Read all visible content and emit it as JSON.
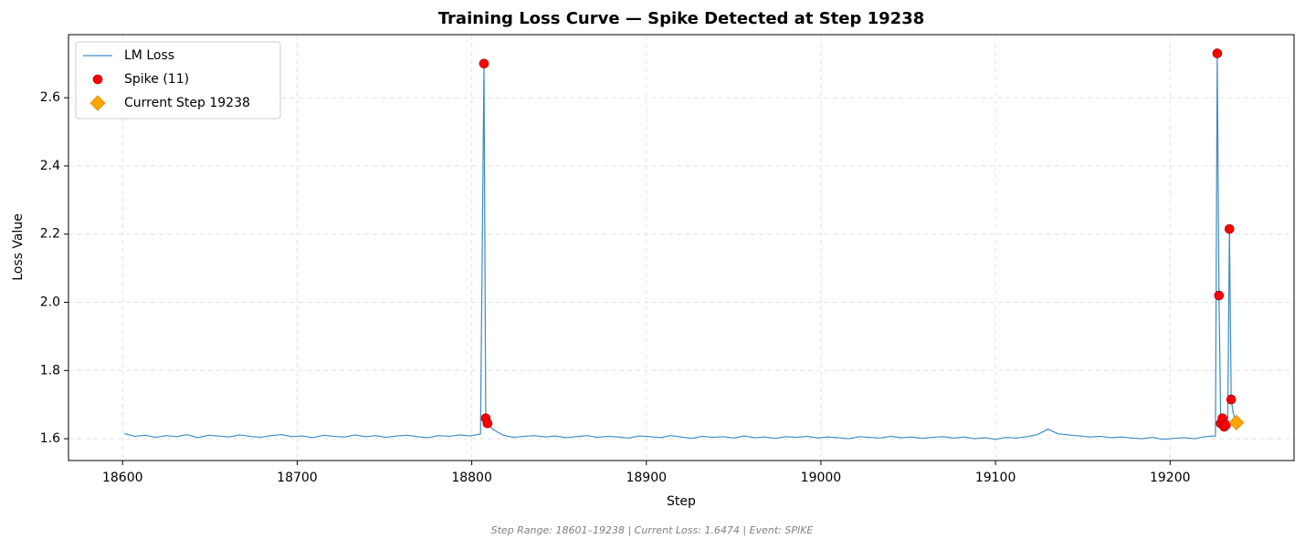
{
  "chart_data": {
    "type": "line",
    "title": "Training Loss Curve — Spike Detected at Step 19238",
    "xlabel": "Step",
    "ylabel": "Loss Value",
    "footnote": "Step Range: 18601–19238 | Current Loss: 1.6474 | Event: SPIKE",
    "xlim": [
      18569,
      19271
    ],
    "ylim": [
      1.536,
      2.785
    ],
    "xticks": [
      18600,
      18700,
      18800,
      18900,
      19000,
      19100,
      19200
    ],
    "yticks": [
      1.6,
      1.8,
      {
        "value": 2,
        "label": "2.0"
      },
      2.2,
      2.4,
      2.6
    ],
    "grid": true,
    "legend": "upper left",
    "series": [
      {
        "name": "LM Loss",
        "marker": "line",
        "color": "#3d8bc4",
        "x": [
          18601,
          18607,
          18613,
          18619,
          18625,
          18631,
          18637,
          18643,
          18649,
          18655,
          18661,
          18667,
          18673,
          18679,
          18685,
          18691,
          18697,
          18703,
          18709,
          18715,
          18721,
          18727,
          18733,
          18739,
          18745,
          18751,
          18757,
          18763,
          18769,
          18775,
          18781,
          18787,
          18793,
          18799,
          18805,
          18807,
          18808,
          18809,
          18812,
          18818,
          18824,
          18830,
          18836,
          18842,
          18848,
          18854,
          18860,
          18866,
          18872,
          18878,
          18884,
          18890,
          18896,
          18902,
          18908,
          18914,
          18920,
          18926,
          18932,
          18938,
          18944,
          18950,
          18956,
          18962,
          18968,
          18974,
          18980,
          18986,
          18992,
          18998,
          19004,
          19010,
          19016,
          19022,
          19028,
          19034,
          19040,
          19046,
          19052,
          19058,
          19064,
          19070,
          19076,
          19082,
          19088,
          19094,
          19100,
          19106,
          19112,
          19118,
          19124,
          19130,
          19136,
          19142,
          19148,
          19154,
          19160,
          19166,
          19172,
          19178,
          19184,
          19190,
          19196,
          19202,
          19208,
          19214,
          19220,
          19226,
          19227,
          19228,
          19229,
          19230,
          19231,
          19232,
          19233,
          19234,
          19235,
          19236,
          19237,
          19238
        ],
        "values": [
          1.615,
          1.607,
          1.61,
          1.604,
          1.609,
          1.606,
          1.612,
          1.603,
          1.61,
          1.608,
          1.605,
          1.611,
          1.607,
          1.604,
          1.609,
          1.612,
          1.606,
          1.608,
          1.603,
          1.61,
          1.607,
          1.605,
          1.611,
          1.606,
          1.609,
          1.604,
          1.608,
          1.61,
          1.606,
          1.603,
          1.609,
          1.607,
          1.611,
          1.608,
          1.614,
          2.7,
          1.66,
          1.645,
          1.628,
          1.61,
          1.604,
          1.607,
          1.609,
          1.605,
          1.608,
          1.603,
          1.606,
          1.609,
          1.604,
          1.607,
          1.605,
          1.602,
          1.608,
          1.606,
          1.603,
          1.609,
          1.605,
          1.601,
          1.607,
          1.604,
          1.606,
          1.602,
          1.608,
          1.603,
          1.605,
          1.601,
          1.606,
          1.604,
          1.607,
          1.602,
          1.605,
          1.603,
          1.6,
          1.606,
          1.604,
          1.602,
          1.607,
          1.603,
          1.605,
          1.601,
          1.604,
          1.606,
          1.602,
          1.605,
          1.6,
          1.603,
          1.598,
          1.604,
          1.602,
          1.606,
          1.612,
          1.628,
          1.614,
          1.611,
          1.608,
          1.605,
          1.607,
          1.603,
          1.605,
          1.602,
          1.6,
          1.604,
          1.598,
          1.601,
          1.603,
          1.6,
          1.606,
          1.608,
          2.73,
          2.02,
          1.645,
          1.66,
          1.635,
          1.64,
          1.645,
          2.215,
          1.715,
          1.68,
          1.66,
          1.6474
        ]
      },
      {
        "name": "Spike (11)",
        "marker": "circle",
        "color": "#ff0000",
        "x": [
          18807,
          18808,
          18809,
          19227,
          19228,
          19229,
          19230,
          19231,
          19232,
          19234,
          19235
        ],
        "values": [
          2.7,
          1.66,
          1.645,
          2.73,
          2.02,
          1.645,
          1.66,
          1.635,
          1.64,
          2.215,
          1.715
        ]
      },
      {
        "name": "Current Step 19238",
        "marker": "diamond",
        "color": "#ffa500",
        "x": [
          19238
        ],
        "values": [
          1.6474
        ]
      }
    ]
  }
}
